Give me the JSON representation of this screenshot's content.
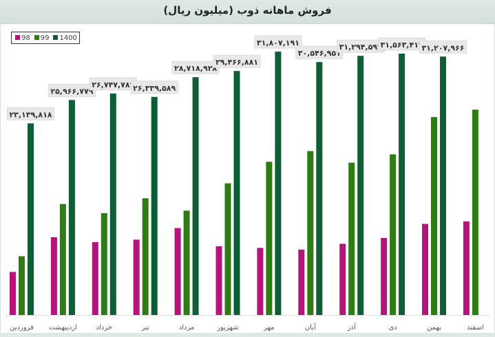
{
  "chart_data": {
    "type": "bar",
    "title": "فروش ماهانه ذوب (میلیون ریال)",
    "categories": [
      "فروردین",
      "اردیبهشت",
      "خرداد",
      "تیر",
      "مرداد",
      "شهریور",
      "مهر",
      "آبان",
      "آذر",
      "دی",
      "بهمن",
      "اسفند"
    ],
    "series": [
      {
        "name": "98",
        "color": "#b5157a",
        "values": [
          5.2,
          9.4,
          8.8,
          9.1,
          10.5,
          8.3,
          8.1,
          7.9,
          8.6,
          9.3,
          11.0,
          11.3
        ]
      },
      {
        "name": "99",
        "color": "#2e7d14",
        "values": [
          7.1,
          13.4,
          12.3,
          14.1,
          12.6,
          15.9,
          18.5,
          19.8,
          18.4,
          19.4,
          23.9,
          24.8
        ]
      },
      {
        "name": "1400",
        "color": "#0e5e34",
        "values": [
          23.139818,
          25.966779,
          26.747784,
          26.339589,
          28.718928,
          29.466881,
          31.807191,
          30.546951,
          31.294593,
          31.563417,
          31.207966,
          null
        ]
      }
    ],
    "data_labels_1400": [
      "۲۳,۱۳۹,۸۱۸",
      "۲۵,۹۶۶,۷۷۹",
      "۲۶,۷۴۷,۷۸۴",
      "۲۶,۳۳۹,۵۸۹",
      "۲۸,۷۱۸,۹۲۸",
      "۲۹,۴۶۶,۸۸۱",
      "۳۱,۸۰۷,۱۹۱",
      "۳۰,۵۴۶,۹۵۱",
      "۳۱,۲۹۴,۵۹۳",
      "۳۱,۵۶۳,۴۱۷",
      "۳۱,۲۰۷,۹۶۶",
      ""
    ],
    "xlabel": "",
    "ylabel": "",
    "ylim": [
      0,
      32
    ],
    "grid": false,
    "legend_position": "top-left"
  }
}
